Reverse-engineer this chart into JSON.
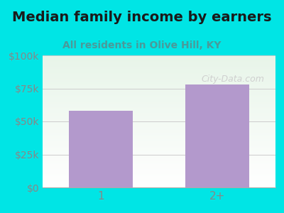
{
  "title": "Median family income by earners",
  "subtitle": "All residents in Olive Hill, KY",
  "categories": [
    "1",
    "2+"
  ],
  "values": [
    58000,
    78000
  ],
  "bar_color": "#b399cc",
  "bg_color": "#00e5e5",
  "ylim": [
    0,
    100000
  ],
  "yticks": [
    0,
    25000,
    50000,
    75000,
    100000
  ],
  "ytick_labels": [
    "$0",
    "$25k",
    "$50k",
    "$75k",
    "$100k"
  ],
  "title_color": "#1a1a1a",
  "subtitle_color": "#4a9a9a",
  "tick_color": "#888888",
  "watermark": "City-Data.com",
  "title_fontsize": 14,
  "subtitle_fontsize": 10
}
